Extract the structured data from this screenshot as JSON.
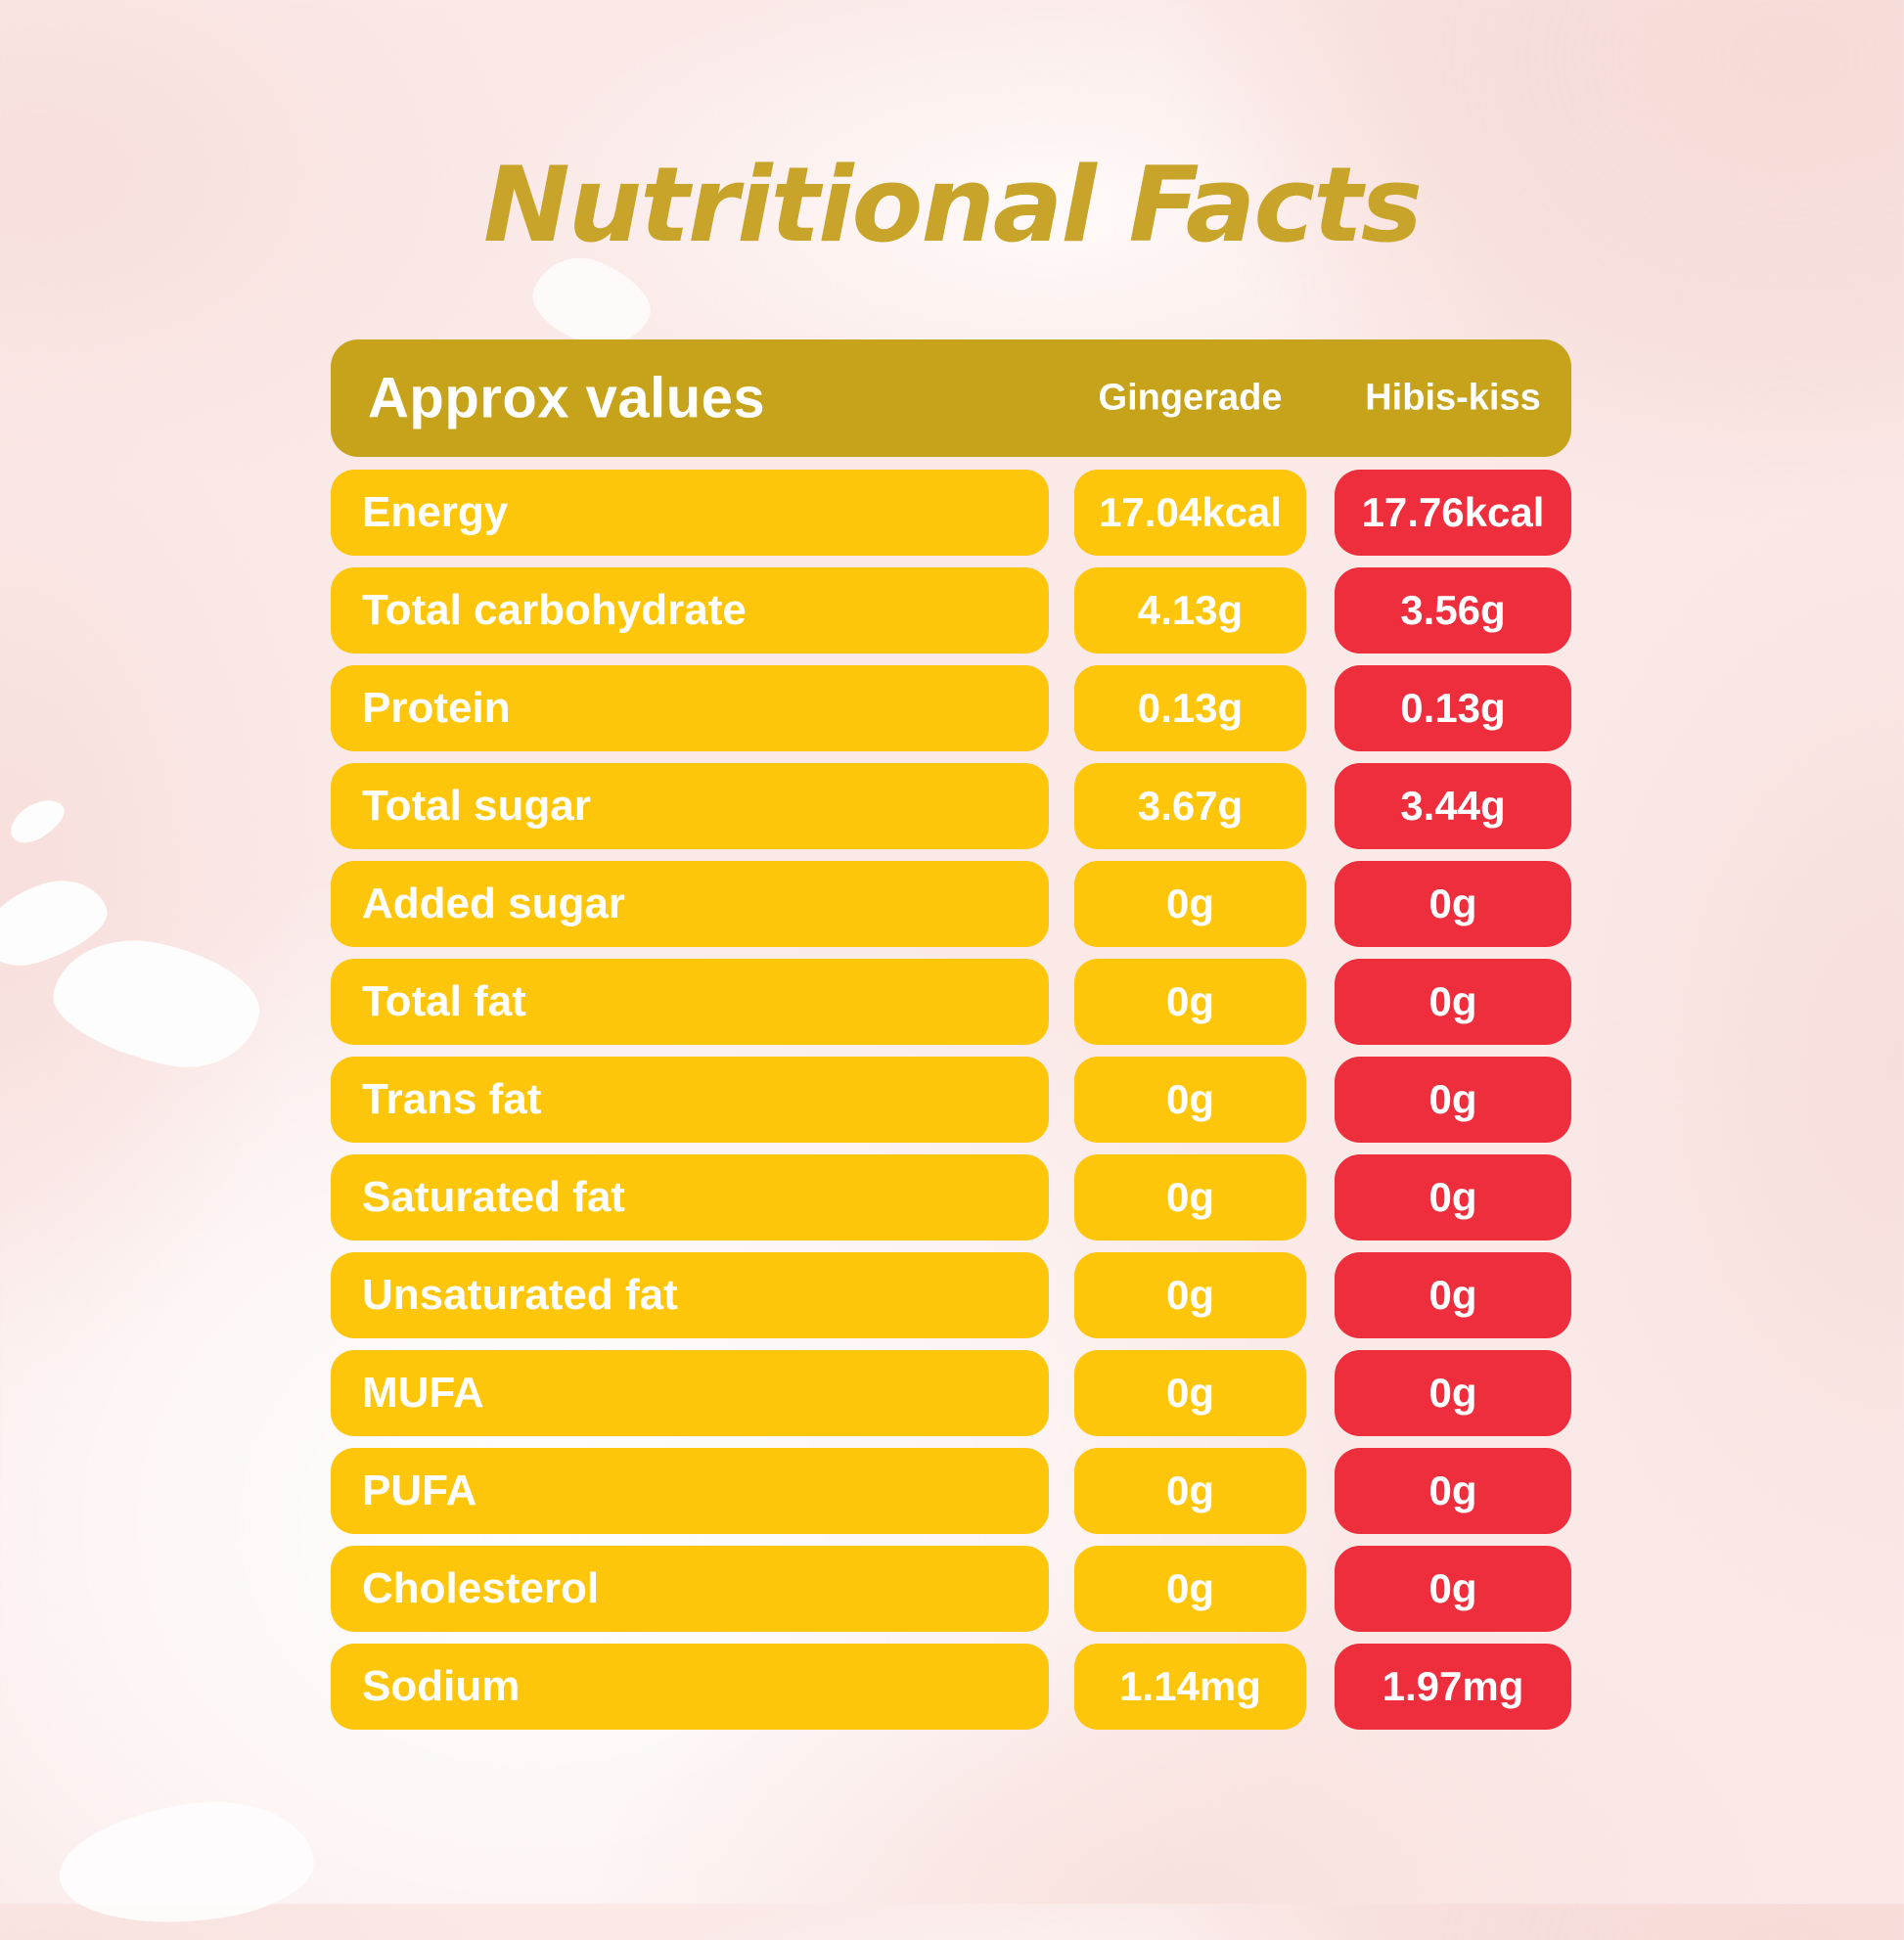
{
  "title": "Nutritional Facts",
  "table": {
    "header": {
      "label": "Approx values",
      "columns": [
        "Gingerade",
        "Hibis-kiss"
      ]
    },
    "rows": [
      {
        "label": "Energy",
        "gingerade": "17.04kcal",
        "hibis_kiss": "17.76kcal"
      },
      {
        "label": "Total carbohydrate",
        "gingerade": "4.13g",
        "hibis_kiss": "3.56g"
      },
      {
        "label": "Protein",
        "gingerade": "0.13g",
        "hibis_kiss": "0.13g"
      },
      {
        "label": "Total sugar",
        "gingerade": "3.67g",
        "hibis_kiss": "3.44g"
      },
      {
        "label": "Added sugar",
        "gingerade": "0g",
        "hibis_kiss": "0g"
      },
      {
        "label": "Total fat",
        "gingerade": "0g",
        "hibis_kiss": "0g"
      },
      {
        "label": "Trans fat",
        "gingerade": "0g",
        "hibis_kiss": "0g"
      },
      {
        "label": "Saturated fat",
        "gingerade": "0g",
        "hibis_kiss": "0g"
      },
      {
        "label": "Unsaturated fat",
        "gingerade": "0g",
        "hibis_kiss": "0g"
      },
      {
        "label": "MUFA",
        "gingerade": "0g",
        "hibis_kiss": "0g"
      },
      {
        "label": "PUFA",
        "gingerade": "0g",
        "hibis_kiss": "0g"
      },
      {
        "label": "Cholesterol",
        "gingerade": "0g",
        "hibis_kiss": "0g"
      },
      {
        "label": "Sodium",
        "gingerade": "1.14mg",
        "hibis_kiss": "1.97mg"
      }
    ]
  },
  "colors": {
    "title_gold": "#C9A42A",
    "header_gold": "#C7A31C",
    "pill_yellow": "#FEC60A",
    "pill_red": "#EE2D3D",
    "text_white": "#FFFFFF",
    "background_pink": "#FAE9E7"
  }
}
